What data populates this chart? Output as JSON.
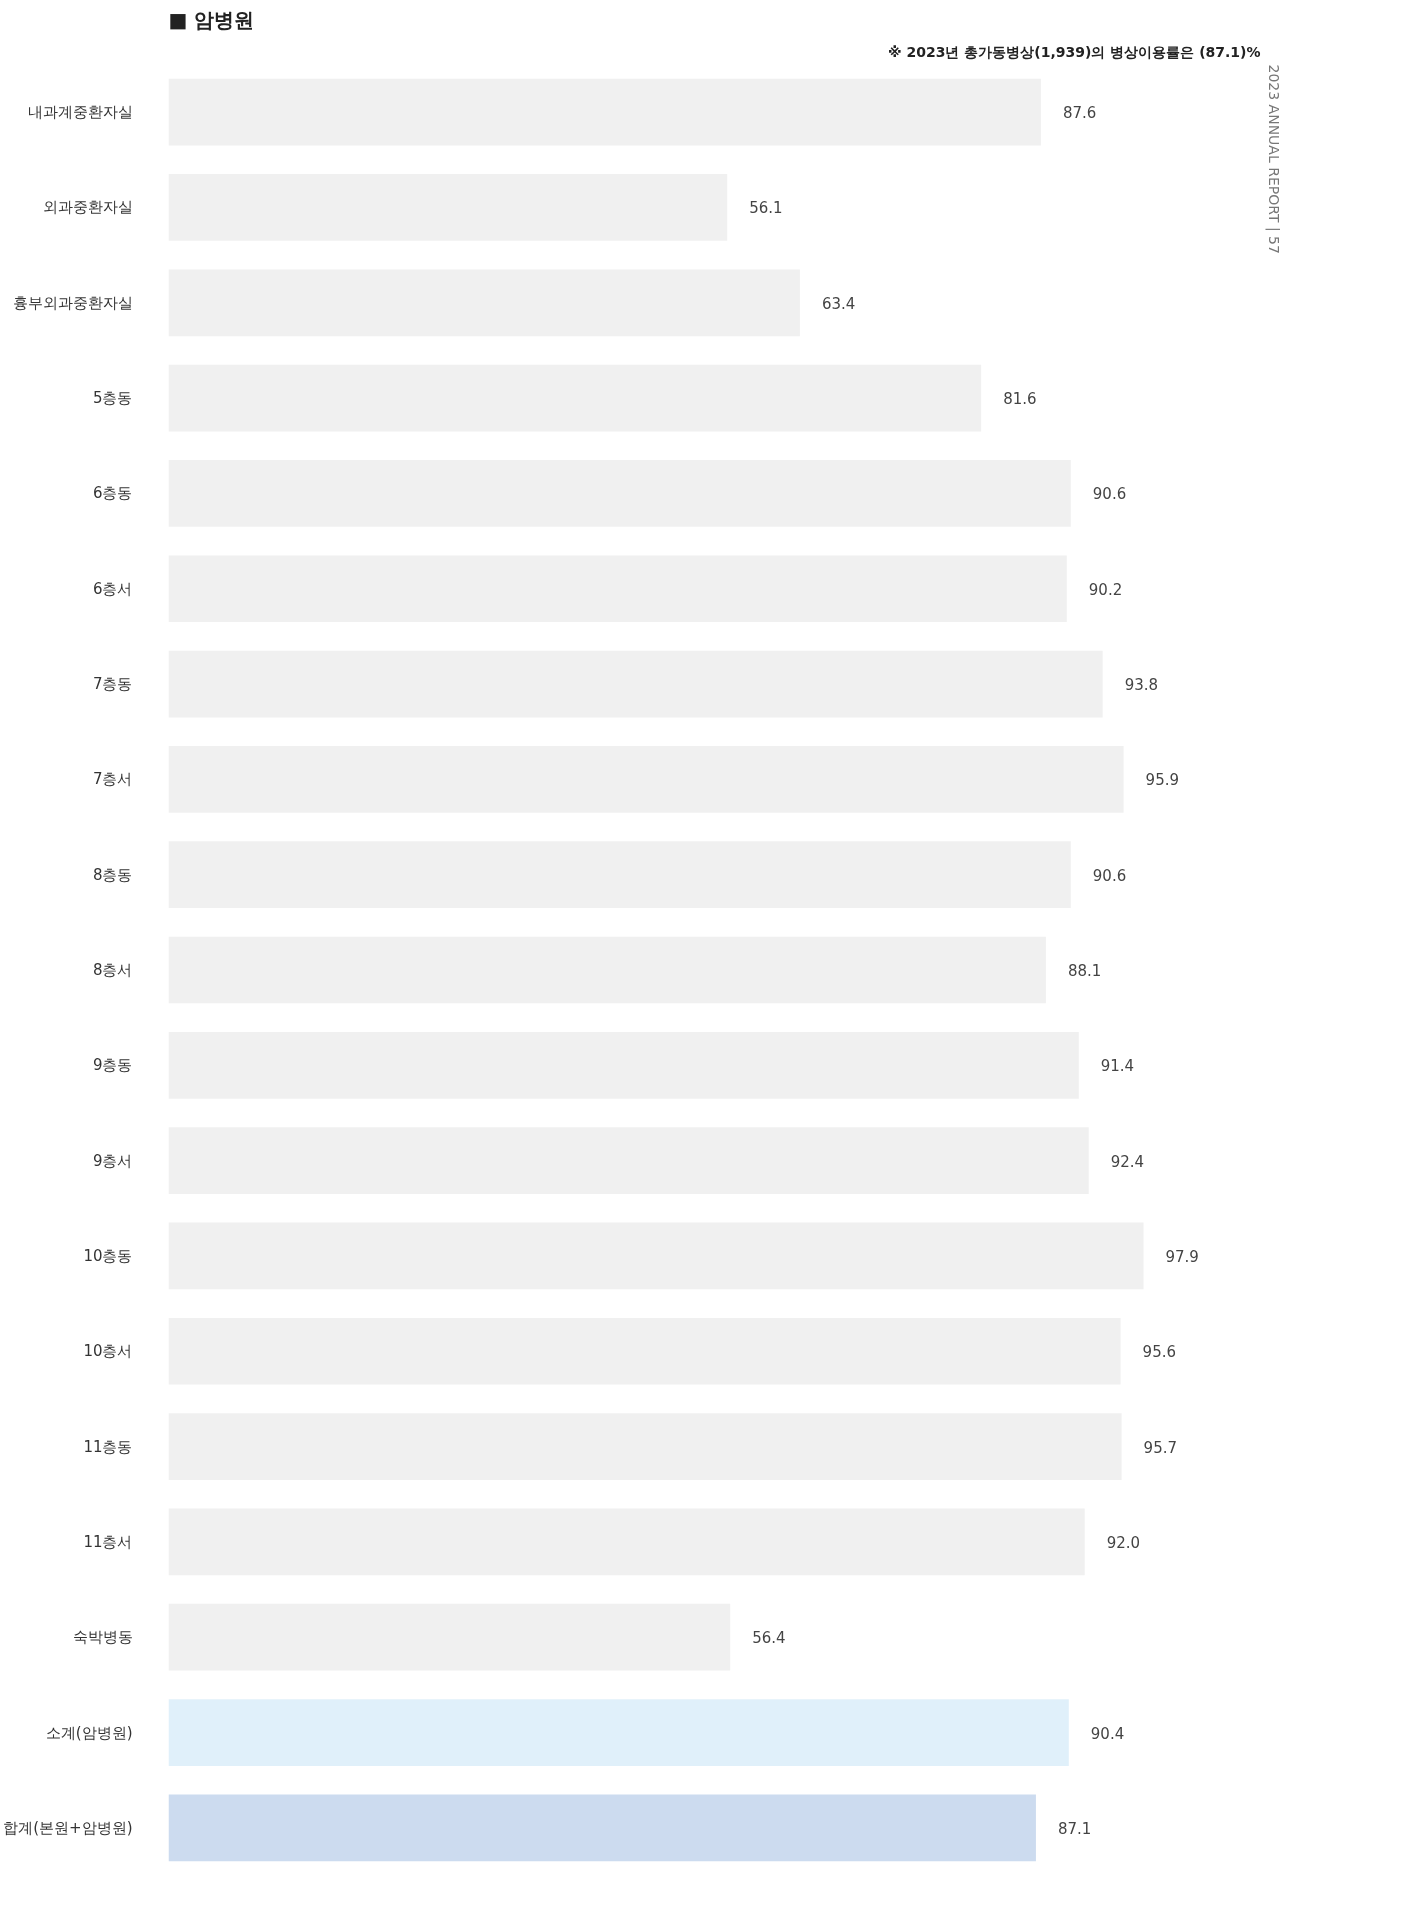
{
  "chart_data": {
    "type": "bar",
    "orientation": "horizontal",
    "title": "■ 암병원",
    "annotations": [
      "※ 2023년 총가동병상(1,939)의 병상이용률은 (87.1)%",
      "2023 ANNUAL REPORT | 57"
    ],
    "categories": [
      "내과계중환자실",
      "외과중환자실",
      "흉부외과중환자실",
      "5층동",
      "6층동",
      "6층서",
      "7층동",
      "7층서",
      "8층동",
      "8층서",
      "9층동",
      "9층서",
      "10층동",
      "10층서",
      "11층동",
      "11층서",
      "숙박병동",
      "소계(암병원)",
      "합계(본원+암병원)"
    ],
    "values": [
      87.6,
      56.1,
      63.4,
      81.6,
      90.6,
      90.2,
      93.8,
      95.9,
      90.6,
      88.1,
      91.4,
      92.4,
      97.9,
      95.6,
      95.7,
      92.0,
      56.4,
      90.4,
      87.1
    ],
    "value_labels": [
      "87.6",
      "56.1",
      "63.4",
      "81.6",
      "90.6",
      "90.2",
      "93.8",
      "95.9",
      "90.6",
      "88.1",
      "91.4",
      "92.4",
      "97.9",
      "95.6",
      "95.7",
      "92.0",
      "56.4",
      "90.4",
      "87.1"
    ],
    "colors": [
      "#f0f0f0",
      "#f0f0f0",
      "#f0f0f0",
      "#f0f0f0",
      "#f0f0f0",
      "#f0f0f0",
      "#f0f0f0",
      "#f0f0f0",
      "#f0f0f0",
      "#f0f0f0",
      "#f0f0f0",
      "#f0f0f0",
      "#f0f0f0",
      "#f0f0f0",
      "#f0f0f0",
      "#f0f0f0",
      "#f0f0f0",
      "#e0f0fa",
      "#ccdbef"
    ],
    "grid": false
  }
}
